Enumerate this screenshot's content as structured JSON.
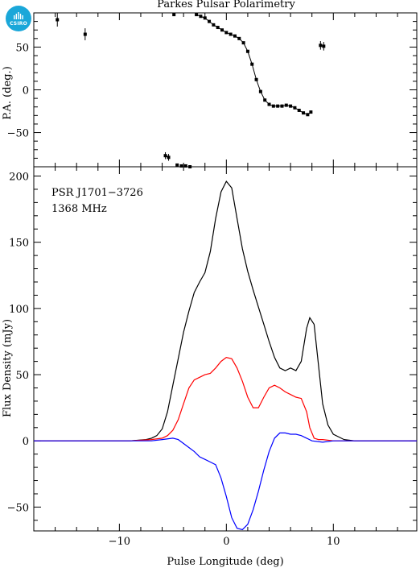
{
  "logo": {
    "text": "CSIRO",
    "color": "#1aa7d9"
  },
  "chart_data": {
    "title": "Parkes Pulsar Polarimetry",
    "annotation_lines": [
      "PSR J1701−3726",
      "1368 MHz"
    ],
    "xlabel": "Pulse Longitude (deg)",
    "xlim": [
      -18.0,
      17.8
    ],
    "x_ticks": [
      -10,
      0,
      10
    ],
    "x_tick_labels": [
      "−10",
      "0",
      "10"
    ],
    "pa_panel": {
      "type": "scatter",
      "ylabel": "P.A. (deg.)",
      "ylim": [
        -90,
        90
      ],
      "y_ticks": [
        -50,
        0,
        50
      ],
      "y_tick_labels": [
        "−50",
        "0",
        "50"
      ],
      "points": [
        {
          "x": -15.8,
          "y": 82,
          "err": 8
        },
        {
          "x": -13.2,
          "y": 65,
          "err": 7
        },
        {
          "x": -5.7,
          "y": -77,
          "err": 4
        },
        {
          "x": -5.4,
          "y": -79,
          "err": 4
        },
        {
          "x": -4.9,
          "y": 88,
          "err": 1
        },
        {
          "x": -4.6,
          "y": -88,
          "err": 1
        },
        {
          "x": -4.2,
          "y": -89,
          "err": 1
        },
        {
          "x": -3.8,
          "y": -89,
          "err": 1
        },
        {
          "x": -3.4,
          "y": -90,
          "err": 1
        },
        {
          "x": -2.8,
          "y": 88,
          "err": 1
        },
        {
          "x": -2.4,
          "y": 86,
          "err": 1
        },
        {
          "x": -2.0,
          "y": 84,
          "err": 1
        },
        {
          "x": -1.6,
          "y": 80,
          "err": 1
        },
        {
          "x": -1.2,
          "y": 76,
          "err": 1
        },
        {
          "x": -0.8,
          "y": 73,
          "err": 1
        },
        {
          "x": -0.4,
          "y": 70,
          "err": 1
        },
        {
          "x": 0.0,
          "y": 67,
          "err": 1
        },
        {
          "x": 0.4,
          "y": 65,
          "err": 1
        },
        {
          "x": 0.8,
          "y": 63,
          "err": 1
        },
        {
          "x": 1.2,
          "y": 60,
          "err": 1
        },
        {
          "x": 1.6,
          "y": 55,
          "err": 1
        },
        {
          "x": 2.0,
          "y": 45,
          "err": 1
        },
        {
          "x": 2.4,
          "y": 30,
          "err": 1
        },
        {
          "x": 2.8,
          "y": 12,
          "err": 1
        },
        {
          "x": 3.2,
          "y": -2,
          "err": 1
        },
        {
          "x": 3.6,
          "y": -12,
          "err": 1
        },
        {
          "x": 4.0,
          "y": -17,
          "err": 1
        },
        {
          "x": 4.4,
          "y": -19,
          "err": 1
        },
        {
          "x": 4.8,
          "y": -19,
          "err": 1
        },
        {
          "x": 5.2,
          "y": -19,
          "err": 1
        },
        {
          "x": 5.6,
          "y": -18,
          "err": 1
        },
        {
          "x": 6.0,
          "y": -19,
          "err": 1
        },
        {
          "x": 6.4,
          "y": -21,
          "err": 1
        },
        {
          "x": 6.8,
          "y": -24,
          "err": 1
        },
        {
          "x": 7.2,
          "y": -27,
          "err": 1
        },
        {
          "x": 7.6,
          "y": -29,
          "err": 1
        },
        {
          "x": 7.9,
          "y": -26,
          "err": 1
        },
        {
          "x": 8.8,
          "y": 52,
          "err": 5
        },
        {
          "x": 9.1,
          "y": 51,
          "err": 5
        }
      ]
    },
    "flux_panel": {
      "type": "line",
      "ylabel": "Flux Density (mJy)",
      "ylim": [
        -68,
        207
      ],
      "y_ticks": [
        -50,
        0,
        50,
        100,
        150,
        200
      ],
      "y_tick_labels": [
        "−50",
        "0",
        "50",
        "100",
        "150",
        "200"
      ],
      "series": [
        {
          "color": "#000000",
          "x": [
            -18,
            -15,
            -12,
            -9,
            -7.5,
            -7,
            -6.5,
            -6,
            -5.5,
            -5,
            -4.5,
            -4,
            -3.5,
            -3,
            -2.5,
            -2,
            -1.5,
            -1,
            -0.5,
            0,
            0.5,
            1,
            1.5,
            2,
            2.5,
            3,
            3.5,
            4,
            4.5,
            5,
            5.5,
            6,
            6.5,
            7,
            7.5,
            7.8,
            8.2,
            8.6,
            9,
            9.5,
            10,
            11,
            12,
            14,
            17.8
          ],
          "values": [
            0,
            0,
            0,
            0,
            1,
            2,
            4,
            9,
            22,
            42,
            62,
            82,
            98,
            112,
            120,
            127,
            143,
            168,
            188,
            196,
            191,
            168,
            145,
            128,
            114,
            101,
            88,
            75,
            63,
            55,
            53,
            55,
            53,
            60,
            85,
            93,
            88,
            58,
            28,
            12,
            5,
            1,
            0,
            0,
            0
          ]
        },
        {
          "color": "#ff0000",
          "x": [
            -18,
            -15,
            -12,
            -9,
            -7,
            -6,
            -5.5,
            -5,
            -4.5,
            -4,
            -3.5,
            -3,
            -2.5,
            -2,
            -1.5,
            -1,
            -0.5,
            0,
            0.5,
            1,
            1.5,
            2,
            2.5,
            3,
            3.5,
            4,
            4.5,
            5,
            5.5,
            6,
            6.5,
            7,
            7.5,
            7.8,
            8.2,
            8.6,
            9,
            10,
            12,
            17.8
          ],
          "values": [
            0,
            0,
            0,
            0,
            1,
            2,
            4,
            8,
            16,
            28,
            40,
            46,
            48,
            50,
            51,
            55,
            60,
            63,
            62,
            55,
            45,
            33,
            25,
            25,
            33,
            40,
            42,
            40,
            37,
            35,
            33,
            32,
            22,
            10,
            2,
            1,
            1,
            0,
            0,
            0
          ]
        },
        {
          "color": "#0000ff",
          "x": [
            -18,
            -15,
            -12,
            -9,
            -7,
            -6,
            -5,
            -4.5,
            -4,
            -3.5,
            -3,
            -2.5,
            -2,
            -1.5,
            -1,
            -0.5,
            0,
            0.5,
            1,
            1.5,
            2,
            2.5,
            3,
            3.5,
            4,
            4.5,
            5,
            5.5,
            6,
            6.5,
            7,
            7.5,
            8,
            9,
            10,
            12,
            17.8
          ],
          "values": [
            0,
            0,
            0,
            0,
            0,
            1,
            2,
            1,
            -2,
            -5,
            -8,
            -12,
            -14,
            -16,
            -18,
            -28,
            -42,
            -58,
            -66,
            -67,
            -63,
            -52,
            -38,
            -22,
            -8,
            2,
            6,
            6,
            5,
            5,
            4,
            2,
            0,
            -1,
            0,
            0,
            0
          ]
        }
      ]
    }
  }
}
